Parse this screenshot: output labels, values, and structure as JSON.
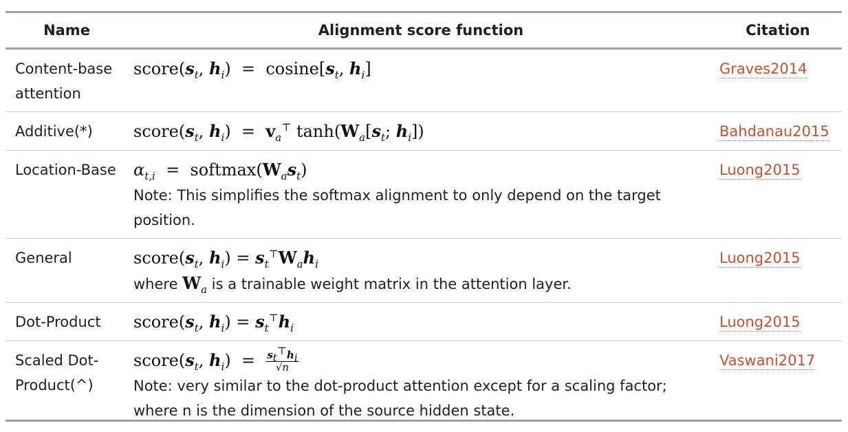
{
  "headers": {
    "name": "Name",
    "function": "Alignment score function",
    "citation": "Citation"
  },
  "rows": [
    {
      "name": "Content-base attention",
      "citation": "Graves2014",
      "note": ""
    },
    {
      "name": "Additive(*)",
      "citation": "Bahdanau2015",
      "note": ""
    },
    {
      "name": "Location-Base",
      "citation": "Luong2015",
      "note": "Note: This simplifies the softmax alignment to only depend on the target position."
    },
    {
      "name": "General",
      "citation": "Luong2015",
      "note_prefix": "where",
      "note_suffix": "is a trainable weight matrix in the attention layer."
    },
    {
      "name": "Dot-Product",
      "citation": "Luong2015",
      "note": ""
    },
    {
      "name": "Scaled Dot-Product(^)",
      "citation": "Vaswani2017",
      "note": "Note: very similar to the dot-product attention except for a scaling factor; where n is the dimension of the source hidden state."
    }
  ]
}
